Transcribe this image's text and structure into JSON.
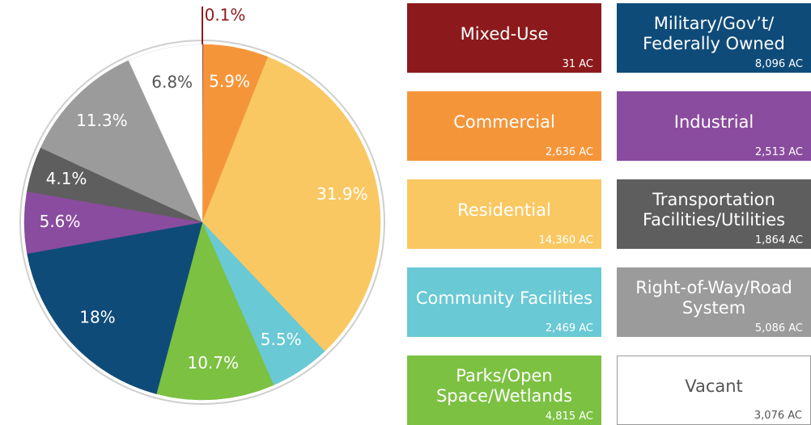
{
  "chart_data": {
    "type": "pie",
    "categories": [
      "Mixed-Use",
      "Commercial",
      "Residential",
      "Community Facilities",
      "Parks/Open Space/Wetlands",
      "Military/Gov’t/ Federally Owned",
      "Industrial",
      "Transportation Facilities/Utilities",
      "Right-of-Way/Road System",
      "Vacant"
    ],
    "values": [
      0.1,
      5.9,
      31.9,
      5.5,
      10.7,
      18,
      5.6,
      4.1,
      11.3,
      6.8
    ],
    "value_labels": [
      "0.1%",
      "5.9%",
      "31.9%",
      "5.5%",
      "10.7%",
      "18%",
      "5.6%",
      "4.1%",
      "11.3%",
      "6.8%"
    ],
    "area_labels": [
      "31 AC",
      "2,636 AC",
      "14,360 AC",
      "2,469 AC",
      "4,815 AC",
      "8,096 AC",
      "2,513 AC",
      "1,864 AC",
      "5,086 AC",
      "3,076 AC"
    ],
    "colors": [
      "#8c1a1c",
      "#f5953a",
      "#f9c862",
      "#69c9d4",
      "#7cc142",
      "#0f4b79",
      "#8a4c9e",
      "#5e5e5e",
      "#9b9b9b",
      "#ffffff"
    ]
  }
}
